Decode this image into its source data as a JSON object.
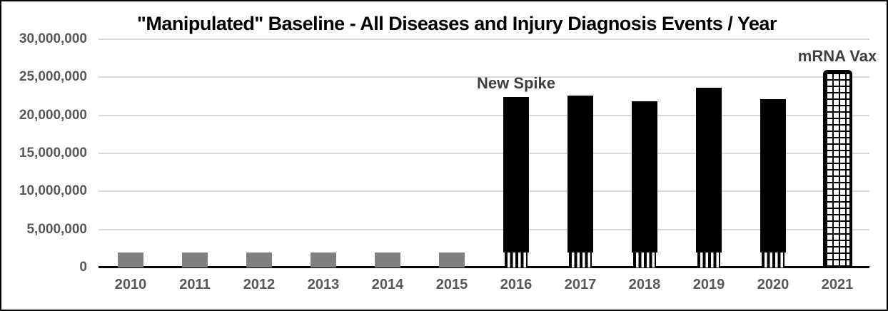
{
  "chart_data": {
    "type": "bar",
    "title": "\"Manipulated\" Baseline - All Diseases and Injury Diagnosis Events / Year",
    "categories": [
      "2010",
      "2011",
      "2012",
      "2013",
      "2014",
      "2015",
      "2016",
      "2017",
      "2018",
      "2019",
      "2020",
      "2021"
    ],
    "values": [
      2000000,
      2000000,
      2000000,
      2000000,
      2000000,
      2000000,
      22400000,
      22600000,
      21800000,
      23600000,
      22100000,
      26000000
    ],
    "bar_styles": [
      "gray",
      "gray",
      "gray",
      "gray",
      "gray",
      "gray",
      "black-striped-base",
      "black-striped-base",
      "black-striped-base",
      "black-striped-base",
      "black-striped-base",
      "grid-hatch"
    ],
    "striped_base_value": 2000000,
    "ylim": [
      0,
      30000000
    ],
    "ytick_interval": 5000000,
    "yticks": [
      "30,000,000",
      "25,000,000",
      "20,000,000",
      "15,000,000",
      "10,000,000",
      "5,000,000",
      "0"
    ],
    "xlabel": "",
    "ylabel": "",
    "grid": "horizontal-major",
    "legend": "none",
    "annotations": [
      {
        "text": "New Spike",
        "target": "2016"
      },
      {
        "text": "mRNA Vax",
        "target": "2021"
      }
    ],
    "colors": {
      "gray_bar": "#7f7f7f",
      "black_bar": "#000000",
      "hatch_bar_line": "#000000",
      "gridline": "#d9d9d9",
      "axis_line": "#000000",
      "tick_label": "#595959",
      "annotation_text": "#404040",
      "title": "#000000",
      "background": "#ffffff",
      "frame_border": "#000000"
    }
  }
}
